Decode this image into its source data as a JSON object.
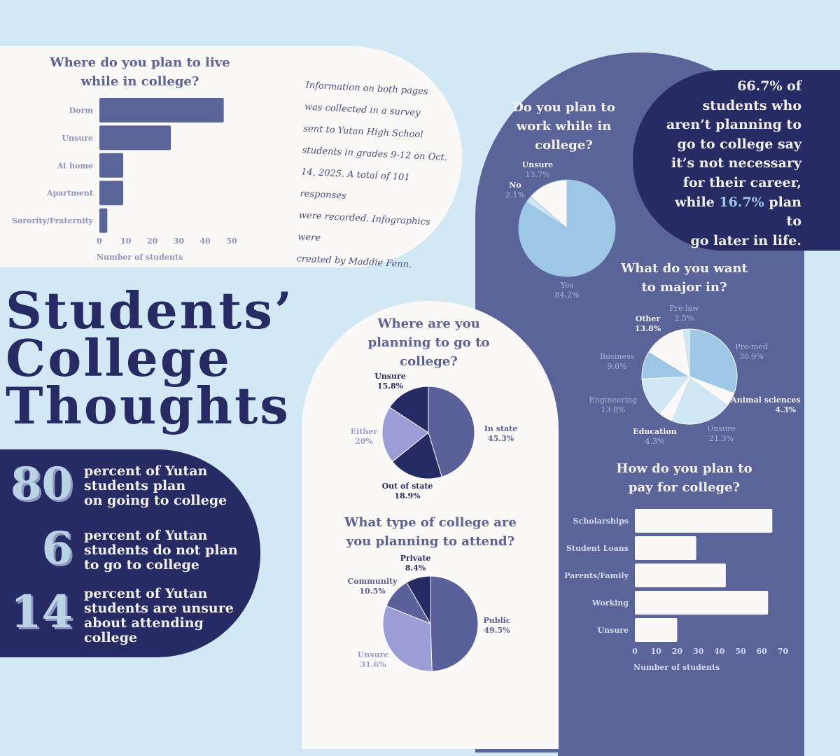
{
  "title": {
    "line1": "Students’",
    "line2": "College",
    "line3": "Thoughts"
  },
  "note": {
    "lines": [
      "Information on both pages",
      "was collected in a survey",
      "sent to Yutan High School",
      "students in grades 9-12 on Oct.",
      "14, 2025. A total of 101 responses",
      "were recorded. Infographics were",
      "created by Maddie Fenn."
    ]
  },
  "stats": [
    {
      "number": "80",
      "lines": [
        "percent of Yutan",
        "students plan",
        "on going to college"
      ]
    },
    {
      "number": "6",
      "lines": [
        "percent of Yutan",
        "students do not plan",
        "to go to college"
      ]
    },
    {
      "number": "14",
      "lines": [
        "percent of Yutan",
        "students are unsure",
        "about attending",
        "college"
      ]
    }
  ],
  "quote": {
    "lines": [
      "66.7% of",
      "students who",
      "aren’t planning to",
      "go to college say",
      "it’s not necessary",
      "for their career,"
    ],
    "line7_pre": "while ",
    "line7_highlight": "16.7%",
    "line7_post": " plan to",
    "line8": "go later in life."
  },
  "colors": {
    "navy": "#262b63",
    "indigo": "#5a6499",
    "lavender": "#9b9ed6",
    "light_blue": "#9ec7e6",
    "pale_blue": "#cfe6f3",
    "cream": "#fbf9f7",
    "background": "#d2e8f4"
  },
  "chart_data": [
    {
      "id": "live",
      "type": "bar",
      "orientation": "horizontal",
      "title": "Where do you plan to live while in college?",
      "title_lines": [
        "Where do you plan to live",
        "while in college?"
      ],
      "categories": [
        "Dorm",
        "Unsure",
        "At home",
        "Apartment",
        "Sorority/Fraternity"
      ],
      "values": [
        47,
        27,
        9,
        9,
        3
      ],
      "xlabel": "Number of students",
      "ticks": [
        "0",
        "10",
        "20",
        "30",
        "40",
        "50"
      ],
      "xlim": [
        0,
        50
      ],
      "bar_color": "#5a6499"
    },
    {
      "id": "work",
      "type": "pie",
      "title": "Do you plan to work while in college?",
      "title_lines": [
        "Do you plan to",
        "work while in",
        "college?"
      ],
      "slices": [
        {
          "label": "Yes",
          "value": 84.2,
          "display": "84.2%",
          "color": "#9ec7e6"
        },
        {
          "label": "No",
          "value": 2.1,
          "display": "2.1%",
          "color": "#cfe6f3"
        },
        {
          "label": "Unsure",
          "value": 13.7,
          "display": "13.7%",
          "color": "#fbf9f7"
        }
      ]
    },
    {
      "id": "where",
      "type": "pie",
      "title": "Where are you planning to go to college?",
      "title_lines": [
        "Where are you",
        "planning to go to",
        "college?"
      ],
      "slices": [
        {
          "label": "In state",
          "value": 45.3,
          "display": "45.3%",
          "color": "#5a6099"
        },
        {
          "label": "Out of state",
          "value": 18.9,
          "display": "18.9%",
          "color": "#262b63"
        },
        {
          "label": "Either",
          "value": 20,
          "display": "20%",
          "color": "#9b9ed6"
        },
        {
          "label": "Unsure",
          "value": 15.8,
          "display": "15.8%",
          "color": "#262b63"
        }
      ]
    },
    {
      "id": "type",
      "type": "pie",
      "title": "What type of college are you planning to attend?",
      "title_lines": [
        "What type of college are",
        "you planning to attend?"
      ],
      "slices": [
        {
          "label": "Public",
          "value": 49.5,
          "display": "49.5%",
          "color": "#5a6099"
        },
        {
          "label": "Unsure",
          "value": 31.6,
          "display": "31.6%",
          "color": "#9b9ed6"
        },
        {
          "label": "Community",
          "value": 10.5,
          "display": "10.5%",
          "color": "#5a6099"
        },
        {
          "label": "Private",
          "value": 8.4,
          "display": "8.4%",
          "color": "#262b63"
        }
      ]
    },
    {
      "id": "major",
      "type": "pie",
      "title": "What do you want to major in?",
      "title_lines": [
        "What do you want",
        "to major in?"
      ],
      "slices": [
        {
          "label": "Pre-med",
          "value": 30.9,
          "display": "30.9%",
          "color": "#9ec7e6"
        },
        {
          "label": "Animal sciences",
          "value": 4.3,
          "display": "4.3%",
          "color": "#fbf9f7"
        },
        {
          "label": "Unsure",
          "value": 21.3,
          "display": "21.3%",
          "color": "#cfe6f3"
        },
        {
          "label": "Education",
          "value": 4.3,
          "display": "4.3%",
          "color": "#fbf9f7"
        },
        {
          "label": "Engineering",
          "value": 13.8,
          "display": "13.8%",
          "color": "#cfe6f3"
        },
        {
          "label": "Business",
          "value": 9.6,
          "display": "9.6%",
          "color": "#9ec7e6"
        },
        {
          "label": "Other",
          "value": 13.8,
          "display": "13.8%",
          "color": "#fbf9f7"
        },
        {
          "label": "Pre-law",
          "value": 2.5,
          "display": "2.5%",
          "color": "#cfe6f3"
        }
      ]
    },
    {
      "id": "pay",
      "type": "bar",
      "orientation": "horizontal",
      "title": "How do you plan to pay for college?",
      "title_lines": [
        "How do you plan to",
        "pay for college?"
      ],
      "categories": [
        "Scholarships",
        "Student Loans",
        "Parents/Family",
        "Working",
        "Unsure"
      ],
      "values": [
        65,
        29,
        43,
        63,
        20
      ],
      "xlabel": "Number of students",
      "ticks": [
        "0",
        "10",
        "20",
        "30",
        "40",
        "50",
        "60",
        "70"
      ],
      "xlim": [
        0,
        70
      ],
      "bar_color": "#fbf9f7"
    }
  ]
}
